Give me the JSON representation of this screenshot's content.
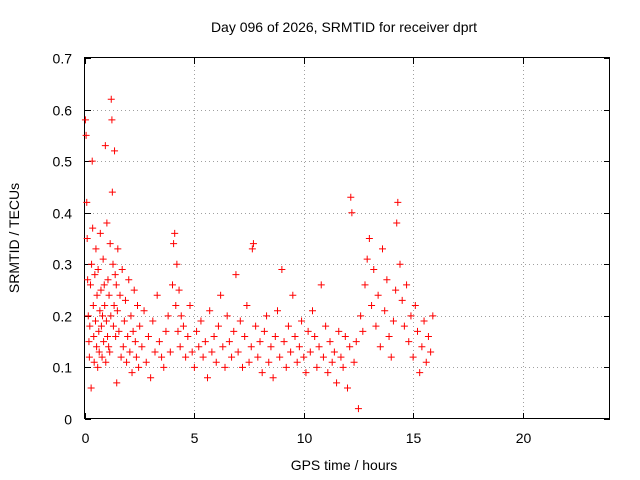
{
  "chart_data": {
    "type": "scatter",
    "title": "Day 096 of 2026, SRMTID for receiver dprt",
    "xlabel": "GPS time / hours",
    "ylabel": "SRMTID / TECUs",
    "xlim": [
      0,
      24
    ],
    "ylim": [
      0,
      0.7
    ],
    "x_ticks": [
      0,
      5,
      10,
      15,
      20
    ],
    "x_tick_labels": [
      "0",
      "5",
      "10",
      "15",
      "20"
    ],
    "y_ticks": [
      0,
      0.1,
      0.2,
      0.3,
      0.4,
      0.5,
      0.6,
      0.7
    ],
    "y_tick_labels": [
      "0",
      "0.1",
      "0.2",
      "0.3",
      "0.4",
      "0.5",
      "0.6",
      "0.7"
    ],
    "grid": true,
    "marker": "plus",
    "color": "#ff0000",
    "series": [
      {
        "name": "dprt",
        "x": [
          0.02,
          0.05,
          0.08,
          0.1,
          0.12,
          0.15,
          0.18,
          0.2,
          0.22,
          0.25,
          0.28,
          0.3,
          0.33,
          0.35,
          0.38,
          0.4,
          0.42,
          0.45,
          0.48,
          0.5,
          0.53,
          0.55,
          0.58,
          0.6,
          0.63,
          0.65,
          0.68,
          0.7,
          0.73,
          0.75,
          0.78,
          0.8,
          0.83,
          0.85,
          0.88,
          0.9,
          0.93,
          0.95,
          0.98,
          1.0,
          1.03,
          1.05,
          1.08,
          1.1,
          1.13,
          1.15,
          1.18,
          1.2,
          1.23,
          1.25,
          1.28,
          1.3,
          1.33,
          1.35,
          1.38,
          1.4,
          1.43,
          1.45,
          1.48,
          1.5,
          1.55,
          1.6,
          1.65,
          1.7,
          1.75,
          1.8,
          1.85,
          1.9,
          1.95,
          2.0,
          2.05,
          2.1,
          2.15,
          2.2,
          2.25,
          2.3,
          2.35,
          2.4,
          2.45,
          2.5,
          2.6,
          2.7,
          2.8,
          2.9,
          3.0,
          3.1,
          3.2,
          3.3,
          3.4,
          3.5,
          3.6,
          3.7,
          3.8,
          3.9,
          4.0,
          4.05,
          4.1,
          4.15,
          4.2,
          4.25,
          4.3,
          4.35,
          4.4,
          4.5,
          4.6,
          4.7,
          4.8,
          4.9,
          5.0,
          5.1,
          5.2,
          5.3,
          5.4,
          5.5,
          5.6,
          5.7,
          5.8,
          5.9,
          6.0,
          6.1,
          6.2,
          6.3,
          6.4,
          6.5,
          6.6,
          6.7,
          6.8,
          6.9,
          7.0,
          7.1,
          7.2,
          7.3,
          7.4,
          7.5,
          7.6,
          7.65,
          7.7,
          7.8,
          7.9,
          8.0,
          8.1,
          8.2,
          8.3,
          8.4,
          8.5,
          8.6,
          8.7,
          8.8,
          8.9,
          9.0,
          9.1,
          9.2,
          9.3,
          9.4,
          9.5,
          9.6,
          9.7,
          9.8,
          9.9,
          10.0,
          10.1,
          10.2,
          10.3,
          10.4,
          10.5,
          10.6,
          10.7,
          10.8,
          10.9,
          11.0,
          11.1,
          11.2,
          11.3,
          11.4,
          11.5,
          11.6,
          11.7,
          11.8,
          11.9,
          12.0,
          12.1,
          12.15,
          12.2,
          12.3,
          12.4,
          12.5,
          12.6,
          12.7,
          12.8,
          12.9,
          13.0,
          13.1,
          13.2,
          13.3,
          13.4,
          13.5,
          13.6,
          13.7,
          13.8,
          13.9,
          14.0,
          14.1,
          14.2,
          14.25,
          14.3,
          14.4,
          14.5,
          14.6,
          14.7,
          14.8,
          14.9,
          15.0,
          15.1,
          15.2,
          15.3,
          15.4,
          15.5,
          15.6,
          15.7,
          15.8,
          15.9
        ],
        "y": [
          0.58,
          0.55,
          0.42,
          0.35,
          0.27,
          0.2,
          0.15,
          0.12,
          0.18,
          0.26,
          0.06,
          0.3,
          0.5,
          0.37,
          0.22,
          0.16,
          0.11,
          0.28,
          0.19,
          0.33,
          0.14,
          0.24,
          0.1,
          0.29,
          0.17,
          0.13,
          0.21,
          0.36,
          0.25,
          0.18,
          0.12,
          0.2,
          0.31,
          0.15,
          0.26,
          0.22,
          0.53,
          0.11,
          0.19,
          0.38,
          0.16,
          0.27,
          0.14,
          0.24,
          0.13,
          0.34,
          0.2,
          0.62,
          0.58,
          0.44,
          0.3,
          0.18,
          0.22,
          0.52,
          0.28,
          0.16,
          0.26,
          0.07,
          0.21,
          0.33,
          0.17,
          0.24,
          0.12,
          0.29,
          0.14,
          0.19,
          0.23,
          0.11,
          0.16,
          0.27,
          0.13,
          0.2,
          0.09,
          0.17,
          0.25,
          0.15,
          0.12,
          0.22,
          0.1,
          0.18,
          0.14,
          0.21,
          0.11,
          0.16,
          0.08,
          0.19,
          0.13,
          0.24,
          0.15,
          0.12,
          0.1,
          0.17,
          0.2,
          0.13,
          0.26,
          0.34,
          0.36,
          0.22,
          0.3,
          0.17,
          0.25,
          0.14,
          0.2,
          0.18,
          0.12,
          0.16,
          0.22,
          0.13,
          0.1,
          0.17,
          0.14,
          0.19,
          0.12,
          0.15,
          0.08,
          0.21,
          0.13,
          0.16,
          0.11,
          0.18,
          0.24,
          0.14,
          0.1,
          0.2,
          0.15,
          0.12,
          0.17,
          0.28,
          0.13,
          0.19,
          0.1,
          0.16,
          0.22,
          0.11,
          0.14,
          0.33,
          0.34,
          0.18,
          0.12,
          0.15,
          0.09,
          0.17,
          0.2,
          0.11,
          0.14,
          0.08,
          0.16,
          0.21,
          0.12,
          0.29,
          0.15,
          0.1,
          0.18,
          0.13,
          0.24,
          0.16,
          0.11,
          0.14,
          0.19,
          0.12,
          0.09,
          0.17,
          0.13,
          0.21,
          0.16,
          0.1,
          0.14,
          0.26,
          0.12,
          0.18,
          0.09,
          0.15,
          0.11,
          0.13,
          0.07,
          0.17,
          0.12,
          0.1,
          0.16,
          0.06,
          0.14,
          0.43,
          0.4,
          0.11,
          0.15,
          0.02,
          0.2,
          0.17,
          0.26,
          0.31,
          0.35,
          0.22,
          0.29,
          0.18,
          0.24,
          0.14,
          0.33,
          0.21,
          0.27,
          0.16,
          0.12,
          0.19,
          0.25,
          0.38,
          0.42,
          0.3,
          0.23,
          0.18,
          0.26,
          0.15,
          0.2,
          0.12,
          0.22,
          0.17,
          0.09,
          0.14,
          0.19,
          0.11,
          0.16,
          0.13,
          0.2
        ]
      }
    ]
  }
}
